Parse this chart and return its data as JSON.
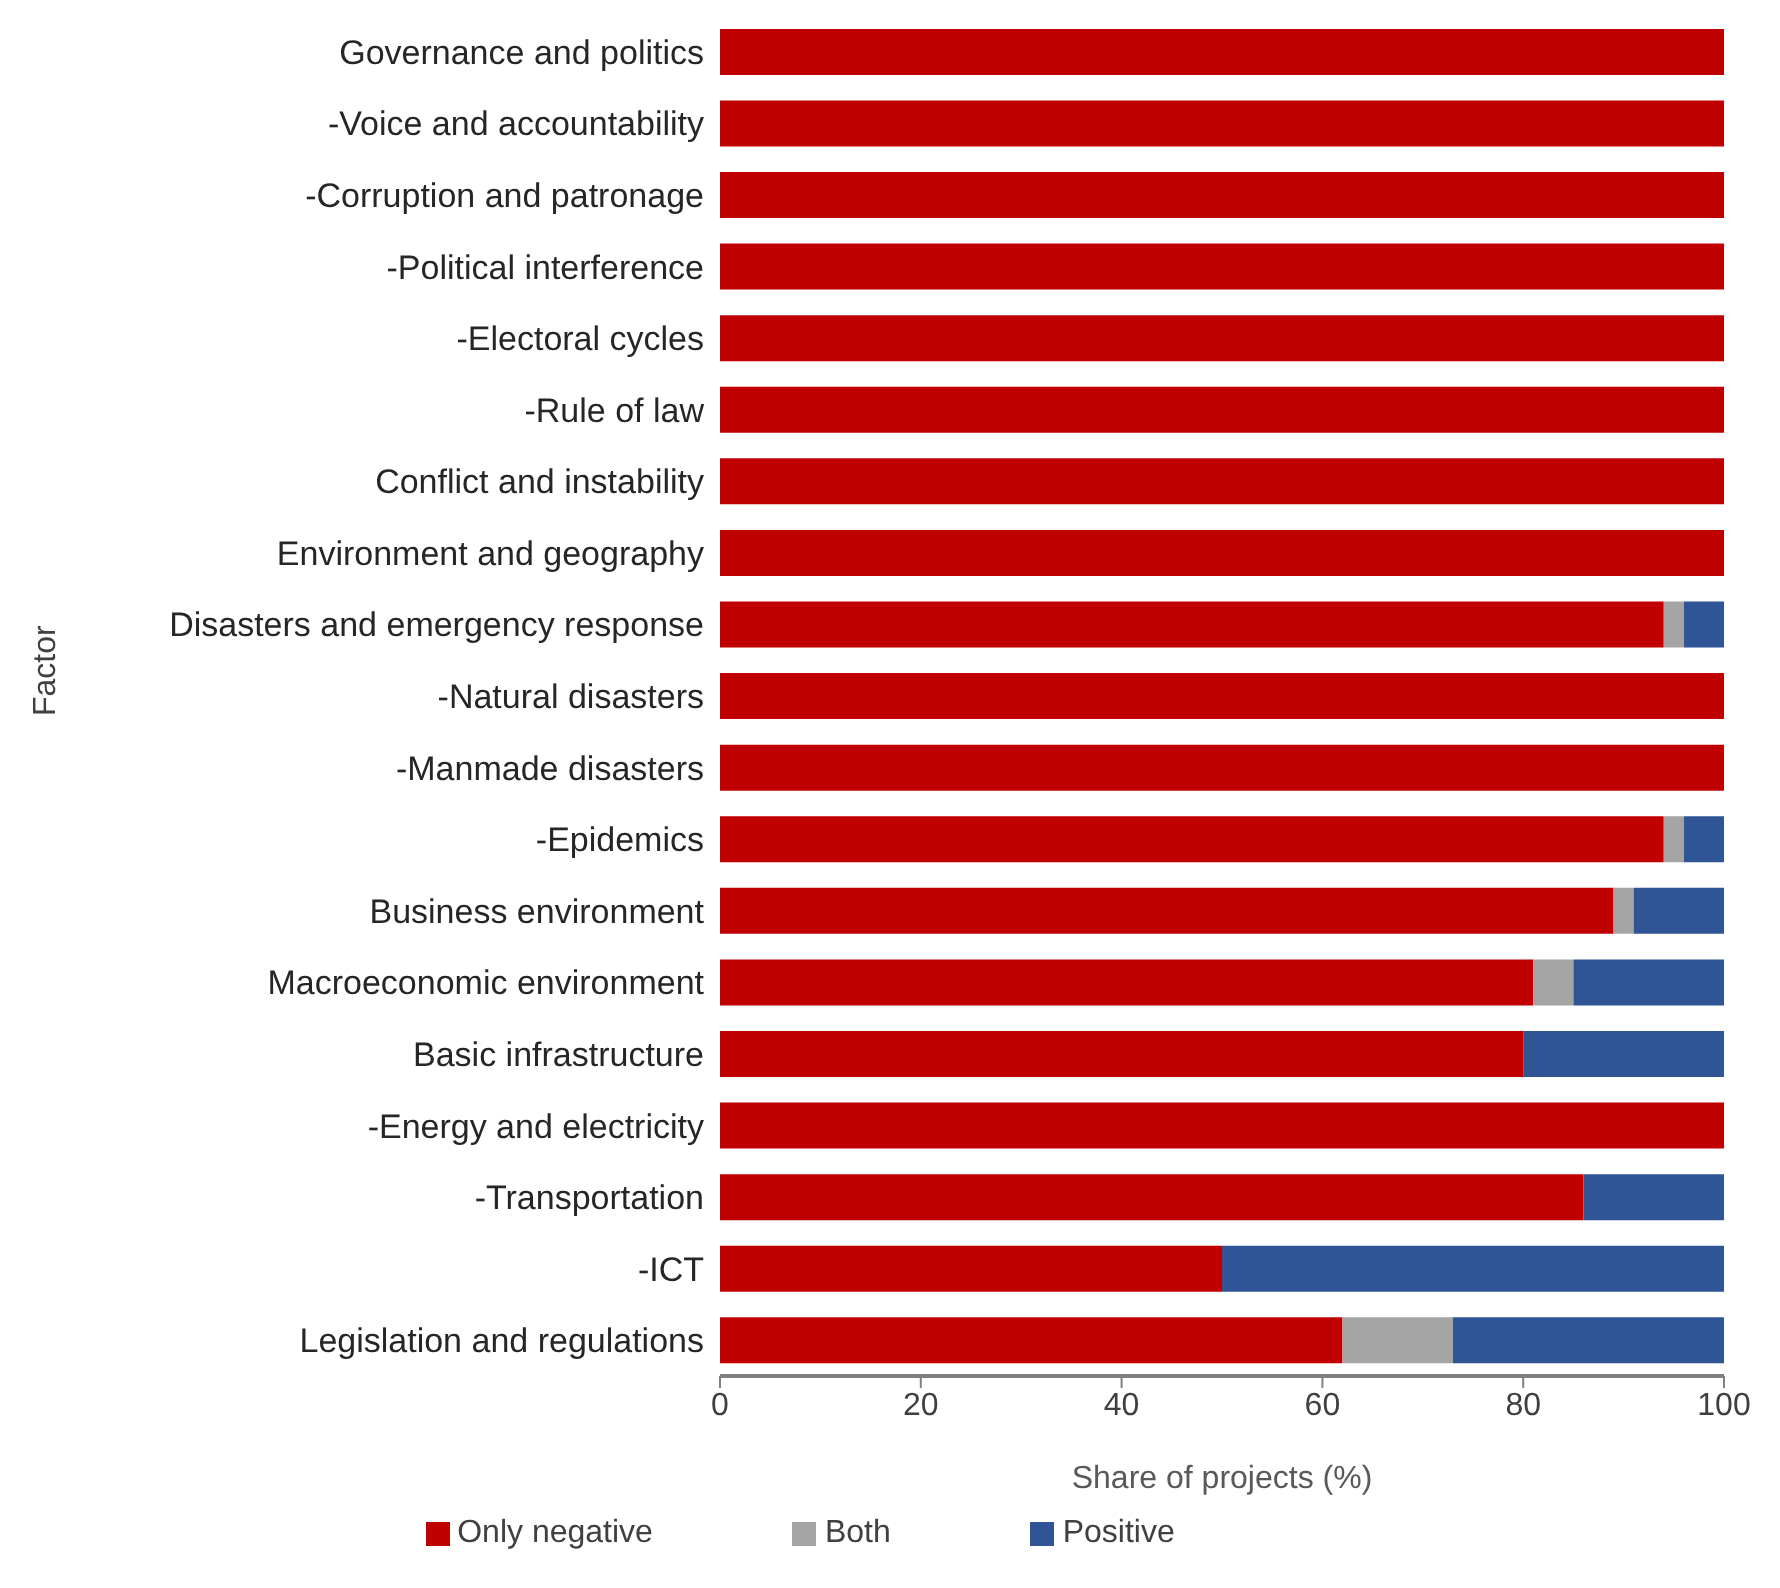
{
  "chart_data": {
    "type": "bar",
    "orientation": "horizontal",
    "stacked": true,
    "xlabel": "Share of projects (%)",
    "ylabel": "Factor",
    "categories": [
      "Governance and politics",
      "-Voice and accountability",
      "-Corruption and patronage",
      "-Political interference",
      "-Electoral cycles",
      "-Rule of law",
      "Conflict and instability",
      "Environment and geography",
      "Disasters and emergency response",
      "-Natural disasters",
      "-Manmade disasters",
      "-Epidemics",
      "Business environment",
      "Macroeconomic environment",
      "Basic infrastructure",
      "-Energy and electricity",
      "-Transportation",
      "-ICT",
      "Legislation and regulations"
    ],
    "series": [
      {
        "name": "Only negative",
        "color": "#c00000",
        "values": [
          100,
          100,
          100,
          100,
          100,
          100,
          100,
          100,
          94,
          100,
          100,
          94,
          89,
          81,
          80,
          100,
          86,
          50,
          62
        ]
      },
      {
        "name": "Both",
        "color": "#a5a5a5",
        "values": [
          0,
          0,
          0,
          0,
          0,
          0,
          0,
          0,
          2,
          0,
          0,
          2,
          2,
          4,
          0,
          0,
          0,
          0,
          11
        ]
      },
      {
        "name": "Positive",
        "color": "#2f5597",
        "values": [
          0,
          0,
          0,
          0,
          0,
          0,
          0,
          0,
          4,
          0,
          0,
          4,
          9,
          15,
          20,
          0,
          14,
          50,
          27
        ]
      }
    ],
    "xlim": [
      0,
      100
    ],
    "xticks": [
      0,
      20,
      40,
      60,
      80,
      100
    ],
    "grid": false,
    "legend": "bottom"
  }
}
